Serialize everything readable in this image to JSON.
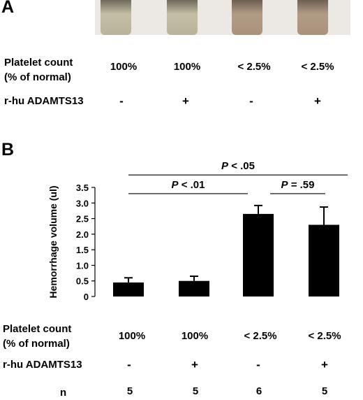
{
  "colors": {
    "bar": "#000000",
    "axis": "#000000",
    "photo_background": "#ece9e4",
    "tube_normal_platelets": "#b9b39a",
    "tube_low_platelets": "#a8927c"
  },
  "panelA": {
    "letter": "A",
    "platelet_label_line1": "Platelet count",
    "platelet_label_line2": "(% of normal)",
    "adamts_label": "r-hu ADAMTS13",
    "platelet_values": [
      "100%",
      "100%",
      "< 2.5%",
      "< 2.5%"
    ],
    "adamts_values": [
      "-",
      "+",
      "-",
      "+"
    ]
  },
  "panelB": {
    "letter": "B",
    "platelet_label_line1": "Platelet count",
    "platelet_label_line2": "(% of normal)",
    "adamts_label": "r-hu ADAMTS13",
    "n_label": "n",
    "platelet_values": [
      "100%",
      "100%",
      "< 2.5%",
      "< 2.5%"
    ],
    "adamts_values": [
      "-",
      "+",
      "-",
      "+"
    ],
    "n_values": [
      "5",
      "5",
      "6",
      "5"
    ]
  },
  "chart_data": {
    "type": "bar",
    "ylabel": "Hemorrhage volume (ul)",
    "xlabel": "",
    "ylim": [
      0,
      3.5
    ],
    "yticks": [
      0,
      0.5,
      1.0,
      1.5,
      2.0,
      2.5,
      3.0,
      3.5
    ],
    "ytick_labels": [
      "0",
      "0.5",
      "1.0",
      "1.5",
      "2.0",
      "2.5",
      "3.0",
      "3.5"
    ],
    "categories": [
      "1",
      "2",
      "3",
      "4"
    ],
    "values": [
      0.45,
      0.5,
      2.65,
      2.3
    ],
    "errors": [
      0.15,
      0.15,
      0.27,
      0.57
    ],
    "grid": false,
    "annotations": [
      {
        "text": "P < .05",
        "from": 0,
        "to": 3,
        "level": 3.9
      },
      {
        "text": "P < .01",
        "from": 0,
        "to": 2,
        "level": 3.3
      },
      {
        "text": "P = .59",
        "from": 2,
        "to": 3,
        "level": 3.3
      }
    ]
  }
}
